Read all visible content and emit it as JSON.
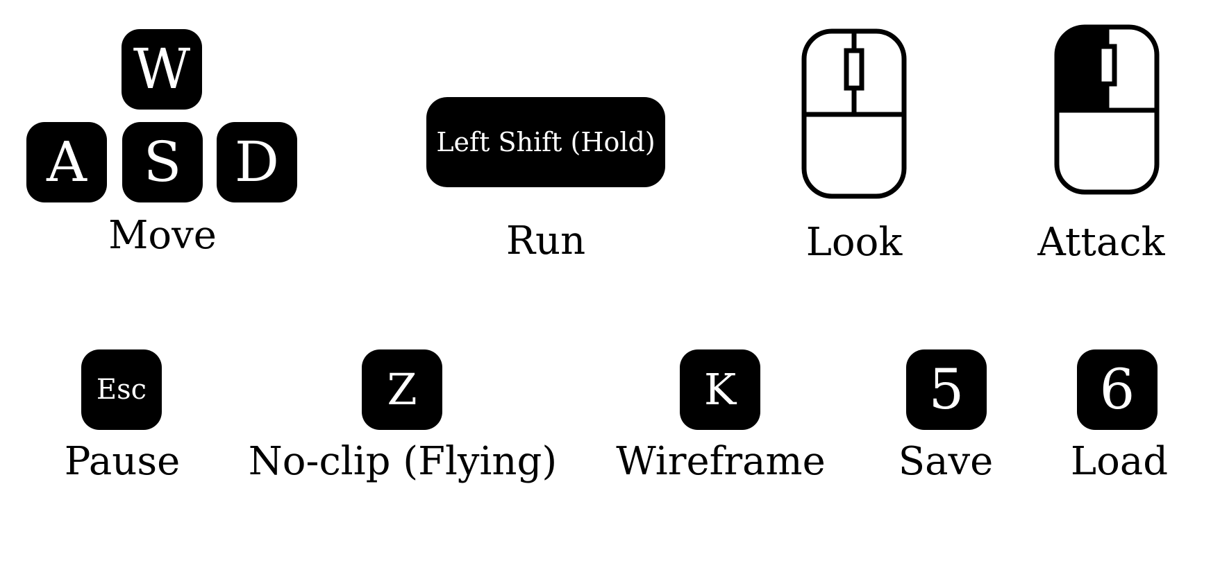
{
  "controls": {
    "move": {
      "keys": {
        "w": "W",
        "a": "A",
        "s": "S",
        "d": "D"
      },
      "label": "Move"
    },
    "run": {
      "key": "Left Shift (Hold)",
      "label": "Run"
    },
    "look": {
      "icon": "mouse-icon",
      "label": "Look"
    },
    "attack": {
      "icon": "mouse-left-click-icon",
      "label": "Attack"
    },
    "pause": {
      "key": "Esc",
      "label": "Pause"
    },
    "noclip": {
      "key": "Z",
      "label": "No-clip (Flying)"
    },
    "wireframe": {
      "key": "K",
      "label": "Wireframe"
    },
    "save": {
      "key": "5",
      "label": "Save"
    },
    "load": {
      "key": "6",
      "label": "Load"
    }
  },
  "colors": {
    "key_background": "#000000",
    "key_text": "#ffffff",
    "label_text": "#000000",
    "background": "#ffffff"
  }
}
